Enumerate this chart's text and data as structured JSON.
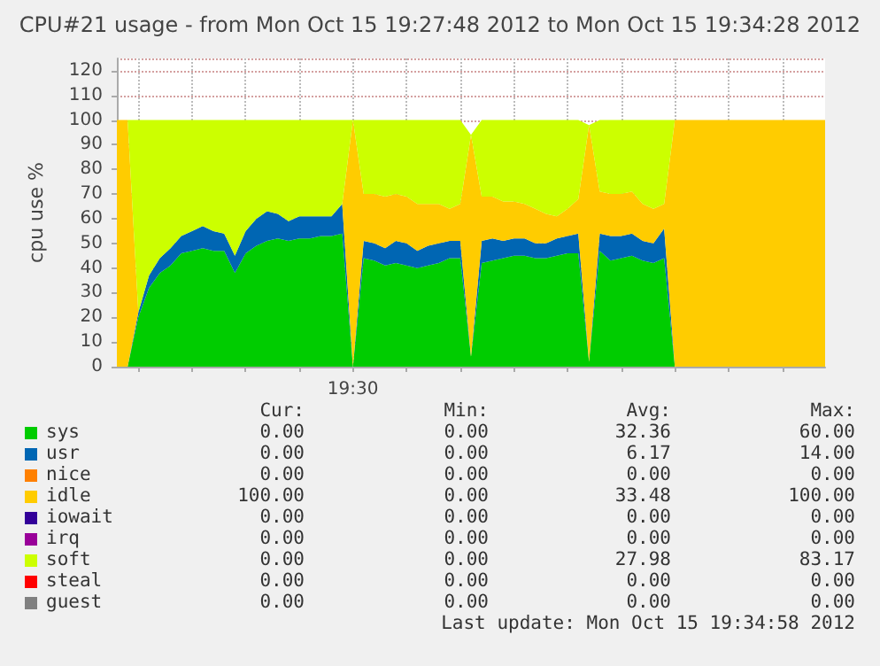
{
  "chart_data": {
    "type": "area",
    "stacked": true,
    "title": "CPU#21 usage - from Mon Oct 15 19:27:48 2012 to Mon Oct 15 19:34:28 2012",
    "ylabel": "cpu use %",
    "categories": [
      null,
      null,
      null,
      null,
      null,
      null,
      null,
      null,
      null,
      null,
      null,
      null,
      null,
      null,
      null,
      null,
      null,
      null,
      null,
      null,
      null,
      null,
      "19:30",
      null,
      null,
      null,
      null,
      null,
      null,
      null,
      null,
      null,
      null,
      null,
      null,
      null,
      null,
      null,
      null,
      null,
      null,
      null,
      null,
      null,
      null,
      null,
      null,
      null,
      null,
      null,
      null,
      null,
      null,
      null,
      null,
      null,
      null,
      null,
      null,
      null,
      null,
      null,
      null,
      null,
      null,
      null,
      null
    ],
    "ylim": [
      0,
      125
    ],
    "yticks": [
      0,
      10,
      20,
      30,
      40,
      50,
      60,
      70,
      80,
      90,
      100,
      110,
      120
    ],
    "grid": true,
    "legend": "bottom",
    "series": [
      {
        "name": "sys",
        "color": "#00cc00",
        "values": [
          0,
          0,
          20,
          32,
          38,
          41,
          46,
          47,
          48,
          47,
          47,
          38,
          46,
          49,
          51,
          52,
          51,
          52,
          52,
          53,
          53,
          54,
          0,
          44,
          43,
          41,
          42,
          41,
          40,
          41,
          42,
          44,
          44,
          4,
          42,
          43,
          44,
          45,
          45,
          44,
          44,
          45,
          46,
          46,
          2,
          47,
          43,
          44,
          45,
          43,
          42,
          44,
          0,
          0,
          0,
          0,
          0,
          0,
          0,
          0,
          0,
          0,
          0,
          0,
          0,
          0,
          0
        ]
      },
      {
        "name": "usr",
        "color": "#0066b3",
        "values": [
          0,
          0,
          2,
          5,
          6,
          7,
          7,
          8,
          9,
          8,
          7,
          7,
          9,
          11,
          12,
          10,
          8,
          9,
          9,
          8,
          8,
          12,
          0,
          7,
          7,
          7,
          9,
          9,
          7,
          8,
          8,
          7,
          7,
          0,
          9,
          9,
          7,
          7,
          7,
          6,
          6,
          7,
          7,
          8,
          0,
          7,
          10,
          9,
          9,
          8,
          8,
          12,
          0,
          0,
          0,
          0,
          0,
          0,
          0,
          0,
          0,
          0,
          0,
          0,
          0,
          0,
          0
        ]
      },
      {
        "name": "nice",
        "color": "#ff8000",
        "values": [
          null,
          null,
          null,
          null,
          null,
          null,
          null,
          null,
          null,
          null,
          null,
          null,
          null,
          null,
          null,
          null,
          null,
          null,
          null,
          null,
          null,
          null,
          null,
          null,
          null,
          null,
          null,
          null,
          null,
          null,
          null,
          null,
          null,
          null,
          null,
          null,
          null,
          null,
          null,
          null,
          null,
          null,
          null,
          null,
          null,
          null,
          null,
          null,
          null,
          null,
          null,
          null,
          null,
          null,
          null,
          null,
          null,
          null,
          null,
          null,
          null,
          null,
          null,
          null,
          null,
          null,
          null
        ]
      },
      {
        "name": "idle",
        "color": "#ffcc00",
        "values": [
          100,
          100,
          0,
          0,
          0,
          0,
          0,
          0,
          0,
          0,
          0,
          0,
          0,
          0,
          0,
          0,
          0,
          0,
          0,
          0,
          0,
          0,
          100,
          19,
          20,
          21,
          19,
          19,
          19,
          17,
          16,
          13,
          15,
          90,
          18,
          17,
          16,
          15,
          14,
          14,
          12,
          9,
          11,
          14,
          96,
          17,
          17,
          17,
          17,
          15,
          14,
          10,
          100,
          100,
          100,
          100,
          100,
          100,
          100,
          100,
          100,
          100,
          100,
          100,
          100,
          100,
          100
        ]
      },
      {
        "name": "iowait",
        "color": "#330099",
        "values": [
          null,
          null,
          null,
          null,
          null,
          null,
          null,
          null,
          null,
          null,
          null,
          null,
          null,
          null,
          null,
          null,
          null,
          null,
          null,
          null,
          null,
          null,
          null,
          null,
          null,
          null,
          null,
          null,
          null,
          null,
          null,
          null,
          null,
          null,
          null,
          null,
          null,
          null,
          null,
          null,
          null,
          null,
          null,
          null,
          null,
          null,
          null,
          null,
          null,
          null,
          null,
          null,
          null,
          null,
          null,
          null,
          null,
          null,
          null,
          null,
          null,
          null,
          null,
          null,
          null,
          null,
          null
        ]
      },
      {
        "name": "irq",
        "color": "#990099",
        "values": [
          null,
          null,
          null,
          null,
          null,
          null,
          null,
          null,
          null,
          null,
          null,
          null,
          null,
          null,
          null,
          null,
          null,
          null,
          null,
          null,
          null,
          null,
          null,
          null,
          null,
          null,
          null,
          null,
          null,
          null,
          null,
          null,
          null,
          null,
          null,
          null,
          null,
          null,
          null,
          null,
          null,
          null,
          null,
          null,
          null,
          null,
          null,
          null,
          null,
          null,
          null,
          null,
          null,
          null,
          null,
          null,
          null,
          null,
          null,
          null,
          null,
          null,
          null,
          null,
          null,
          null,
          null
        ]
      },
      {
        "name": "soft",
        "color": "#ccff00",
        "values": [
          0,
          0,
          78,
          63,
          56,
          52,
          47,
          45,
          43,
          45,
          46,
          55,
          45,
          40,
          37,
          38,
          41,
          39,
          39,
          39,
          39,
          34,
          0,
          30,
          30,
          31,
          30,
          31,
          34,
          34,
          34,
          36,
          34,
          0,
          31,
          31,
          33,
          33,
          34,
          36,
          38,
          39,
          36,
          32,
          0,
          29,
          30,
          30,
          29,
          34,
          36,
          34,
          0,
          0,
          0,
          0,
          0,
          0,
          0,
          0,
          0,
          0,
          0,
          0,
          0,
          0,
          0
        ]
      },
      {
        "name": "steal",
        "color": "#ff0000",
        "values": [
          null,
          null,
          null,
          null,
          null,
          null,
          null,
          null,
          null,
          null,
          null,
          null,
          null,
          null,
          null,
          null,
          null,
          null,
          null,
          null,
          null,
          null,
          null,
          null,
          null,
          null,
          null,
          null,
          null,
          null,
          null,
          null,
          null,
          null,
          null,
          null,
          null,
          null,
          null,
          null,
          null,
          null,
          null,
          null,
          null,
          null,
          null,
          null,
          null,
          null,
          null,
          null,
          null,
          null,
          null,
          null,
          null,
          null,
          null,
          null,
          null,
          null,
          null,
          null,
          null,
          null,
          null
        ]
      },
      {
        "name": "guest",
        "color": "#808080",
        "values": [
          null,
          null,
          null,
          null,
          null,
          null,
          null,
          null,
          null,
          null,
          null,
          null,
          null,
          null,
          null,
          null,
          null,
          null,
          null,
          null,
          null,
          null,
          null,
          null,
          null,
          null,
          null,
          null,
          null,
          null,
          null,
          null,
          null,
          null,
          null,
          null,
          null,
          null,
          null,
          null,
          null,
          null,
          null,
          null,
          null,
          null,
          null,
          null,
          null,
          null,
          null,
          null,
          null,
          null,
          null,
          null,
          null,
          null,
          null,
          null,
          null,
          null,
          null,
          null,
          null,
          null,
          null
        ]
      }
    ],
    "annotations": [
      "Cur:",
      "Min:",
      "Avg:",
      "Max:",
      "0.00",
      "0.00",
      "32.36",
      "60.00",
      "0.00",
      "0.00",
      "6.17",
      "14.00",
      "0.00",
      "0.00",
      "0.00",
      "0.00",
      "100.00",
      "0.00",
      "33.48",
      "100.00",
      "0.00",
      "0.00",
      "0.00",
      "0.00",
      "0.00",
      "0.00",
      "0.00",
      "0.00",
      "0.00",
      "0.00",
      "27.98",
      "83.17",
      "0.00",
      "0.00",
      "0.00",
      "0.00",
      "0.00",
      "0.00",
      "0.00",
      "0.00",
      "Last update: Mon Oct 15 19:34:58 2012"
    ]
  }
}
